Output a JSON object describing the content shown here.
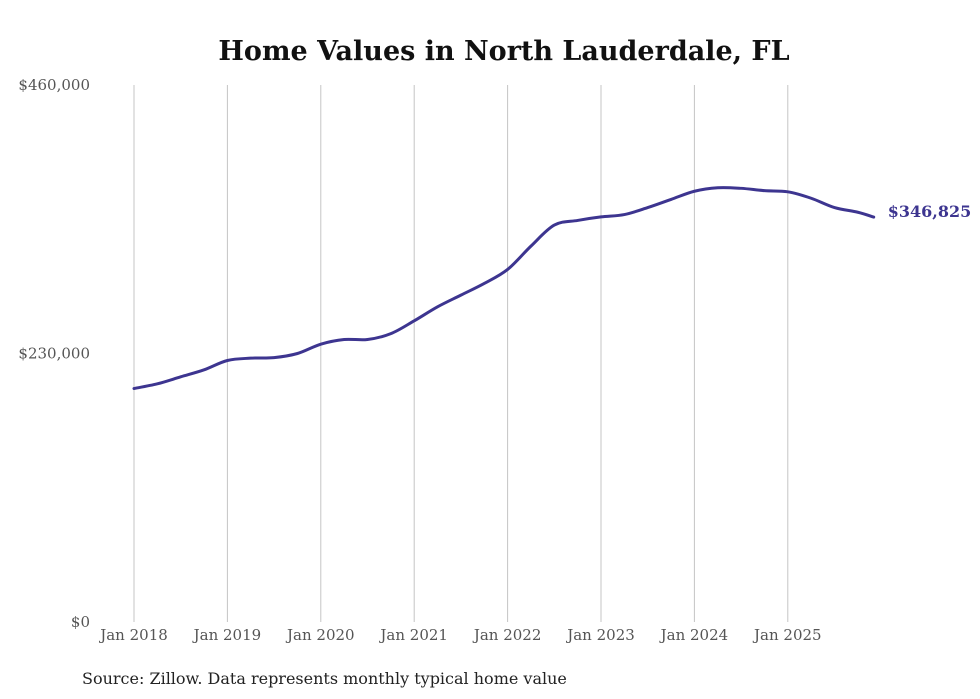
{
  "chart_data": {
    "type": "line",
    "title": "Home Values in North Lauderdale, FL",
    "source": "Source: Zillow. Data represents monthly typical home value",
    "xlabel": "",
    "ylabel": "",
    "ylim": [
      0,
      460000
    ],
    "y_ticks": [
      0,
      230000,
      460000
    ],
    "y_tick_labels": [
      "$0",
      "$230,000",
      "$460,000"
    ],
    "x_ticks": [
      2018,
      2019,
      2020,
      2021,
      2022,
      2023,
      2024,
      2025
    ],
    "x_tick_labels": [
      "Jan 2018",
      "Jan 2019",
      "Jan 2020",
      "Jan 2021",
      "Jan 2022",
      "Jan 2023",
      "Jan 2024",
      "Jan 2025"
    ],
    "grid": "vertical",
    "line_color": "#3d3590",
    "end_label": "$346,825",
    "series": [
      {
        "name": "Typical home value",
        "x": [
          2018.0,
          2018.25,
          2018.5,
          2018.75,
          2019.0,
          2019.25,
          2019.5,
          2019.75,
          2020.0,
          2020.25,
          2020.5,
          2020.75,
          2021.0,
          2021.25,
          2021.5,
          2021.75,
          2022.0,
          2022.25,
          2022.5,
          2022.75,
          2023.0,
          2023.25,
          2023.5,
          2023.75,
          2024.0,
          2024.25,
          2024.5,
          2024.75,
          2025.0,
          2025.25,
          2025.5,
          2025.75,
          2025.92
        ],
        "values": [
          200000,
          204000,
          210000,
          216000,
          224000,
          226000,
          226500,
          230000,
          238000,
          242000,
          242000,
          247000,
          258000,
          270000,
          280000,
          290000,
          302000,
          322000,
          340000,
          344000,
          347000,
          349000,
          355000,
          362000,
          369000,
          372000,
          371500,
          369500,
          368500,
          363000,
          355000,
          351000,
          346825
        ]
      }
    ]
  }
}
